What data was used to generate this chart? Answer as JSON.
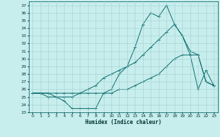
{
  "xlabel": "Humidex (Indice chaleur)",
  "xlim": [
    -0.5,
    23.5
  ],
  "ylim": [
    23,
    37.5
  ],
  "yticks": [
    23,
    24,
    25,
    26,
    27,
    28,
    29,
    30,
    31,
    32,
    33,
    34,
    35,
    36,
    37
  ],
  "xticks": [
    0,
    1,
    2,
    3,
    4,
    5,
    6,
    7,
    8,
    9,
    10,
    11,
    12,
    13,
    14,
    15,
    16,
    17,
    18,
    19,
    20,
    21,
    22,
    23
  ],
  "bg_color": "#c8eded",
  "grid_color": "#a0d0d0",
  "line_color": "#006666",
  "series1": [
    25.5,
    25.5,
    25.0,
    25.0,
    24.5,
    23.5,
    23.5,
    23.5,
    23.5,
    25.5,
    26.0,
    28.0,
    29.0,
    31.5,
    34.5,
    36.0,
    35.5,
    37.0,
    34.5,
    33.0,
    30.5,
    26.0,
    28.5,
    26.5
  ],
  "series2": [
    25.5,
    25.5,
    25.5,
    25.0,
    25.0,
    25.0,
    25.5,
    26.0,
    26.5,
    27.5,
    28.0,
    28.5,
    29.0,
    29.5,
    30.5,
    31.5,
    32.5,
    33.5,
    34.5,
    33.0,
    31.0,
    30.5,
    27.0,
    26.5
  ],
  "series3": [
    25.5,
    25.5,
    25.5,
    25.5,
    25.5,
    25.5,
    25.5,
    25.5,
    25.5,
    25.5,
    25.5,
    26.0,
    26.0,
    26.5,
    27.0,
    27.5,
    28.0,
    29.0,
    30.0,
    30.5,
    30.5,
    30.5,
    27.0,
    26.5
  ]
}
